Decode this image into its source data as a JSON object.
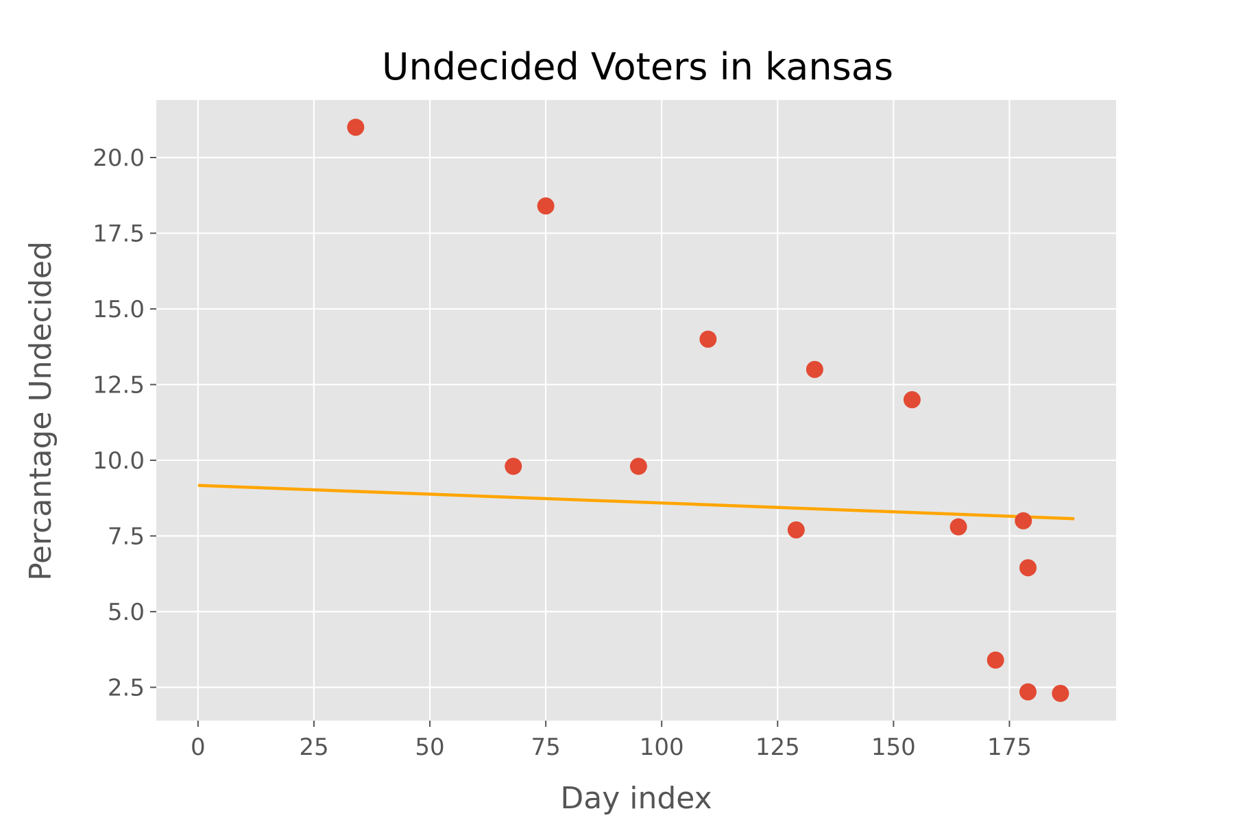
{
  "chart_data": {
    "type": "scatter",
    "title": "Undecided Voters in kansas",
    "xlabel": "Day index",
    "ylabel": "Percantage Undecided",
    "xlim": [
      -9,
      198
    ],
    "ylim": [
      1.4,
      21.9
    ],
    "x_ticks": [
      0,
      25,
      50,
      75,
      100,
      125,
      150,
      175
    ],
    "x_tick_labels": [
      "0",
      "25",
      "50",
      "75",
      "100",
      "125",
      "150",
      "175"
    ],
    "y_ticks": [
      2.5,
      5.0,
      7.5,
      10.0,
      12.5,
      15.0,
      17.5,
      20.0
    ],
    "y_tick_labels": [
      "2.5",
      "5.0",
      "7.5",
      "10.0",
      "12.5",
      "15.0",
      "17.5",
      "20.0"
    ],
    "grid": true,
    "background_color": "#e5e5e5",
    "grid_color": "#ffffff",
    "series": [
      {
        "kind": "scatter",
        "color": "#e24a33",
        "points": [
          {
            "x": 34,
            "y": 21.0
          },
          {
            "x": 68,
            "y": 9.8
          },
          {
            "x": 75,
            "y": 18.4
          },
          {
            "x": 95,
            "y": 9.8
          },
          {
            "x": 110,
            "y": 14.0
          },
          {
            "x": 129,
            "y": 7.7
          },
          {
            "x": 133,
            "y": 13.0
          },
          {
            "x": 154,
            "y": 12.0
          },
          {
            "x": 164,
            "y": 7.8
          },
          {
            "x": 172,
            "y": 3.4
          },
          {
            "x": 178,
            "y": 8.0
          },
          {
            "x": 179,
            "y": 6.45
          },
          {
            "x": 179,
            "y": 2.35
          },
          {
            "x": 186,
            "y": 2.3
          }
        ]
      },
      {
        "kind": "line",
        "color": "#ffa500",
        "points": [
          {
            "x": 0,
            "y": 9.17
          },
          {
            "x": 189,
            "y": 8.07
          }
        ]
      }
    ]
  }
}
